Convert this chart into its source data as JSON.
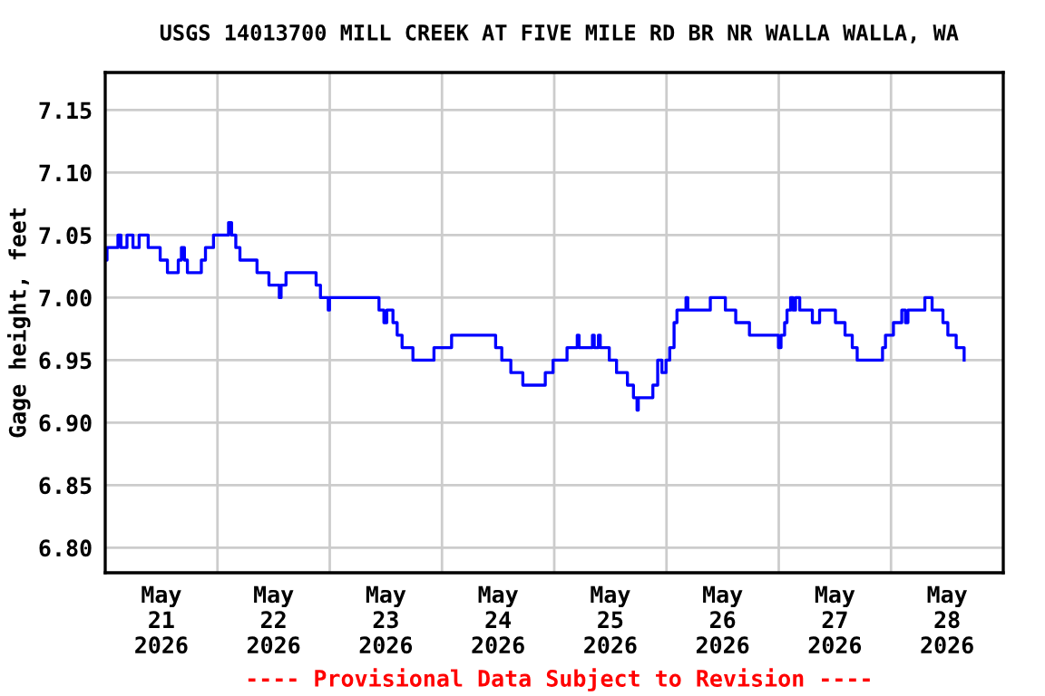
{
  "chart_data": {
    "type": "step",
    "title": "USGS 14013700 MILL CREEK AT FIVE MILE RD BR NR WALLA WALLA, WA",
    "ylabel": "Gage height, feet",
    "annotations": [
      "---- Provisional Data Subject to Revision ----"
    ],
    "grid": true,
    "marker": "none",
    "line_style": "solid",
    "xlim": [
      "2026-05-21",
      "2026-05-29"
    ],
    "ylim": [
      6.78,
      7.18
    ],
    "xticks": [
      {
        "value": "2026-05-21T12:00",
        "label": "May\n21\n2026"
      },
      {
        "value": "2026-05-22T12:00",
        "label": "May\n22\n2026"
      },
      {
        "value": "2026-05-23T12:00",
        "label": "May\n23\n2026"
      },
      {
        "value": "2026-05-24T12:00",
        "label": "May\n24\n2026"
      },
      {
        "value": "2026-05-25T12:00",
        "label": "May\n25\n2026"
      },
      {
        "value": "2026-05-26T12:00",
        "label": "May\n26\n2026"
      },
      {
        "value": "2026-05-27T12:00",
        "label": "May\n27\n2026"
      },
      {
        "value": "2026-05-28T12:00",
        "label": "May\n28\n2026"
      },
      {
        "value": "2026-05-22",
        "label": null
      },
      {
        "value": "2026-05-23",
        "label": null
      },
      {
        "value": "2026-05-24",
        "label": null
      },
      {
        "value": "2026-05-25",
        "label": null
      },
      {
        "value": "2026-05-26",
        "label": null
      },
      {
        "value": "2026-05-27",
        "label": null
      },
      {
        "value": "2026-05-28",
        "label": null
      }
    ],
    "yticks": [
      {
        "value": 6.8,
        "label": "6.80"
      },
      6.85,
      {
        "value": 6.9,
        "label": "6.90"
      },
      6.95,
      {
        "value": 7.0,
        "label": "7.00"
      },
      7.05,
      {
        "value": 7.1,
        "label": "7.10"
      },
      7.15
    ],
    "series": [
      {
        "color": "#0000ff",
        "x": [
          "2026-05-21T00:00",
          "2026-05-21T00:23",
          "2026-05-21T02:43",
          "2026-05-21T03:22",
          "2026-05-21T04:39",
          "2026-05-21T05:56",
          "2026-05-21T07:15",
          "2026-05-21T09:11",
          "2026-05-21T11:45",
          "2026-05-21T13:18",
          "2026-05-21T15:37",
          "2026-05-21T16:17",
          "2026-05-21T16:56",
          "2026-05-21T17:34",
          "2026-05-21T20:33",
          "2026-05-21T21:26",
          "2026-05-21T23:09",
          "2026-05-22T02:22",
          "2026-05-22T03:01",
          "2026-05-22T03:55",
          "2026-05-22T04:48",
          "2026-05-22T08:27",
          "2026-05-22T11:00",
          "2026-05-22T13:13",
          "2026-05-22T13:36",
          "2026-05-22T14:39",
          "2026-05-22T21:05",
          "2026-05-22T22:01",
          "2026-05-22T23:41",
          "2026-05-22T23:57",
          "2026-05-23T10:32",
          "2026-05-23T11:35",
          "2026-05-23T12:12",
          "2026-05-23T13:31",
          "2026-05-23T14:25",
          "2026-05-23T15:28",
          "2026-05-23T17:47",
          "2026-05-23T22:17",
          "2026-05-24T02:03",
          "2026-05-24T11:28",
          "2026-05-24T12:47",
          "2026-05-24T14:43",
          "2026-05-24T17:17",
          "2026-05-24T22:05",
          "2026-05-24T23:45",
          "2026-05-25T02:44",
          "2026-05-25T04:55",
          "2026-05-25T05:18",
          "2026-05-25T08:10",
          "2026-05-25T08:33",
          "2026-05-25T09:27",
          "2026-05-25T09:50",
          "2026-05-25T11:46",
          "2026-05-25T13:19",
          "2026-05-25T15:39",
          "2026-05-25T16:56",
          "2026-05-25T17:42",
          "2026-05-25T17:58",
          "2026-05-25T21:05",
          "2026-05-25T22:07",
          "2026-05-25T23:01",
          "2026-05-25T23:54",
          "2026-05-26T00:41",
          "2026-05-26T01:37",
          "2026-05-26T02:14",
          "2026-05-26T04:10",
          "2026-05-26T04:33",
          "2026-05-26T09:22",
          "2026-05-26T12:35",
          "2026-05-26T14:48",
          "2026-05-26T17:44",
          "2026-05-26T23:56",
          "2026-05-27T00:29",
          "2026-05-27T01:15",
          "2026-05-27T01:46",
          "2026-05-27T02:32",
          "2026-05-27T03:03",
          "2026-05-27T03:35",
          "2026-05-27T04:29",
          "2026-05-27T07:11",
          "2026-05-27T08:44",
          "2026-05-27T12:07",
          "2026-05-27T14:10",
          "2026-05-27T15:43",
          "2026-05-27T16:46",
          "2026-05-27T22:11",
          "2026-05-27T22:49",
          "2026-05-28T00:31",
          "2026-05-28T02:18",
          "2026-05-28T03:05",
          "2026-05-28T03:37",
          "2026-05-28T07:14",
          "2026-05-28T08:47",
          "2026-05-28T11:06",
          "2026-05-28T12:09",
          "2026-05-28T13:56",
          "2026-05-28T15:38"
        ],
        "values": [
          7.03,
          7.04,
          7.05,
          7.04,
          7.05,
          7.04,
          7.05,
          7.04,
          7.03,
          7.02,
          7.03,
          7.04,
          7.03,
          7.02,
          7.03,
          7.04,
          7.05,
          7.06,
          7.05,
          7.04,
          7.03,
          7.02,
          7.01,
          7.0,
          7.01,
          7.02,
          7.01,
          7.0,
          6.99,
          7.0,
          6.99,
          6.98,
          6.99,
          6.98,
          6.97,
          6.96,
          6.95,
          6.96,
          6.97,
          6.96,
          6.95,
          6.94,
          6.93,
          6.94,
          6.95,
          6.96,
          6.97,
          6.96,
          6.97,
          6.96,
          6.97,
          6.96,
          6.95,
          6.94,
          6.93,
          6.92,
          6.91,
          6.92,
          6.93,
          6.95,
          6.94,
          6.95,
          6.96,
          6.98,
          6.99,
          7.0,
          6.99,
          7.0,
          6.99,
          6.98,
          6.97,
          6.96,
          6.97,
          6.98,
          6.99,
          7.0,
          6.99,
          7.0,
          6.99,
          6.98,
          6.99,
          6.98,
          6.97,
          6.96,
          6.95,
          6.96,
          6.97,
          6.98,
          6.99,
          6.98,
          6.99,
          7.0,
          6.99,
          6.98,
          6.97,
          6.96,
          6.95
        ]
      }
    ]
  }
}
